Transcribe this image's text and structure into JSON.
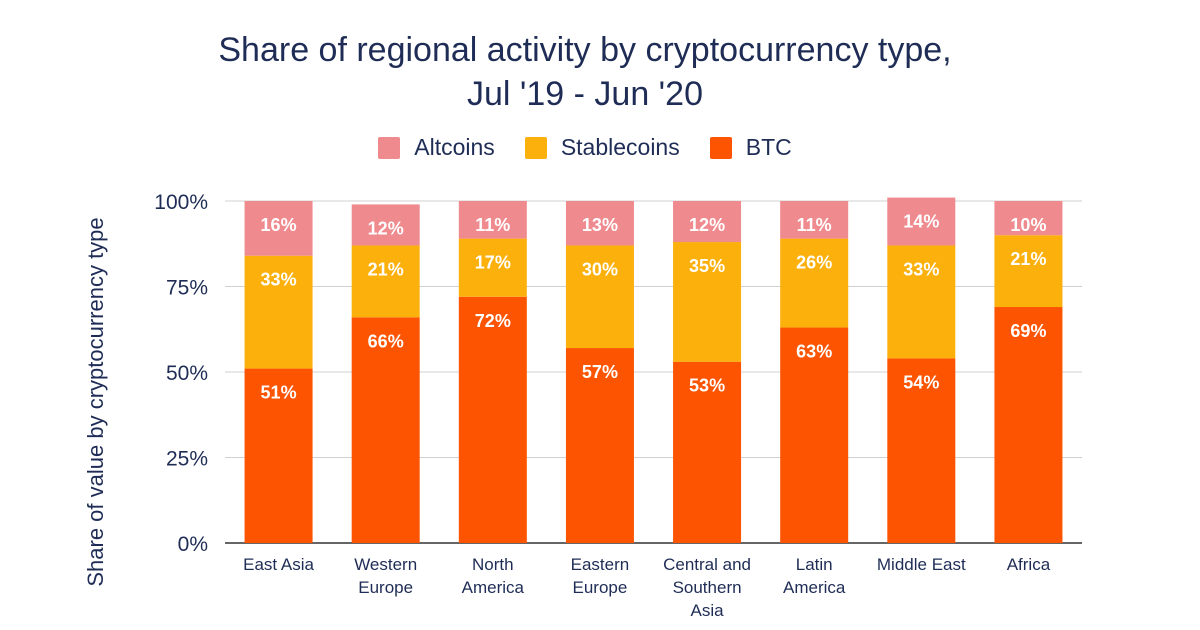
{
  "chart_data": {
    "type": "bar",
    "stacked": true,
    "title_lines": [
      "Share of regional activity by cryptocurrency type,",
      "Jul '19 - Jun '20"
    ],
    "ylabel": "Share of value by cryptocurrency type",
    "xlabel": "",
    "ylim": [
      0,
      100
    ],
    "yticks": [
      "0%",
      "25%",
      "50%",
      "75%",
      "100%"
    ],
    "yticks_values": [
      0,
      25,
      50,
      75,
      100
    ],
    "legend_position": "top-center",
    "grid": true,
    "categories": [
      [
        "East Asia"
      ],
      [
        "Western",
        "Europe"
      ],
      [
        "North",
        "America"
      ],
      [
        "Eastern",
        "Europe"
      ],
      [
        "Central and",
        "Southern",
        "Asia"
      ],
      [
        "Latin",
        "America"
      ],
      [
        "Middle East"
      ],
      [
        "Africa"
      ]
    ],
    "series": [
      {
        "name": "BTC",
        "color": "#fc5400",
        "values": [
          51,
          66,
          72,
          57,
          53,
          63,
          54,
          69
        ],
        "labels": [
          "51%",
          "66%",
          "72%",
          "57%",
          "53%",
          "63%",
          "54%",
          "69%"
        ]
      },
      {
        "name": "Stablecoins",
        "color": "#fbb00c",
        "values": [
          33,
          21,
          17,
          30,
          35,
          26,
          33,
          21
        ],
        "labels": [
          "33%",
          "21%",
          "17%",
          "30%",
          "35%",
          "26%",
          "33%",
          "21%"
        ]
      },
      {
        "name": "Altcoins",
        "color": "#ef8a8e",
        "values": [
          16,
          12,
          11,
          13,
          12,
          11,
          14,
          10
        ],
        "labels": [
          "16%",
          "12%",
          "11%",
          "13%",
          "12%",
          "11%",
          "14%",
          "10%"
        ]
      }
    ],
    "legend_order": [
      "Altcoins",
      "Stablecoins",
      "BTC"
    ]
  }
}
